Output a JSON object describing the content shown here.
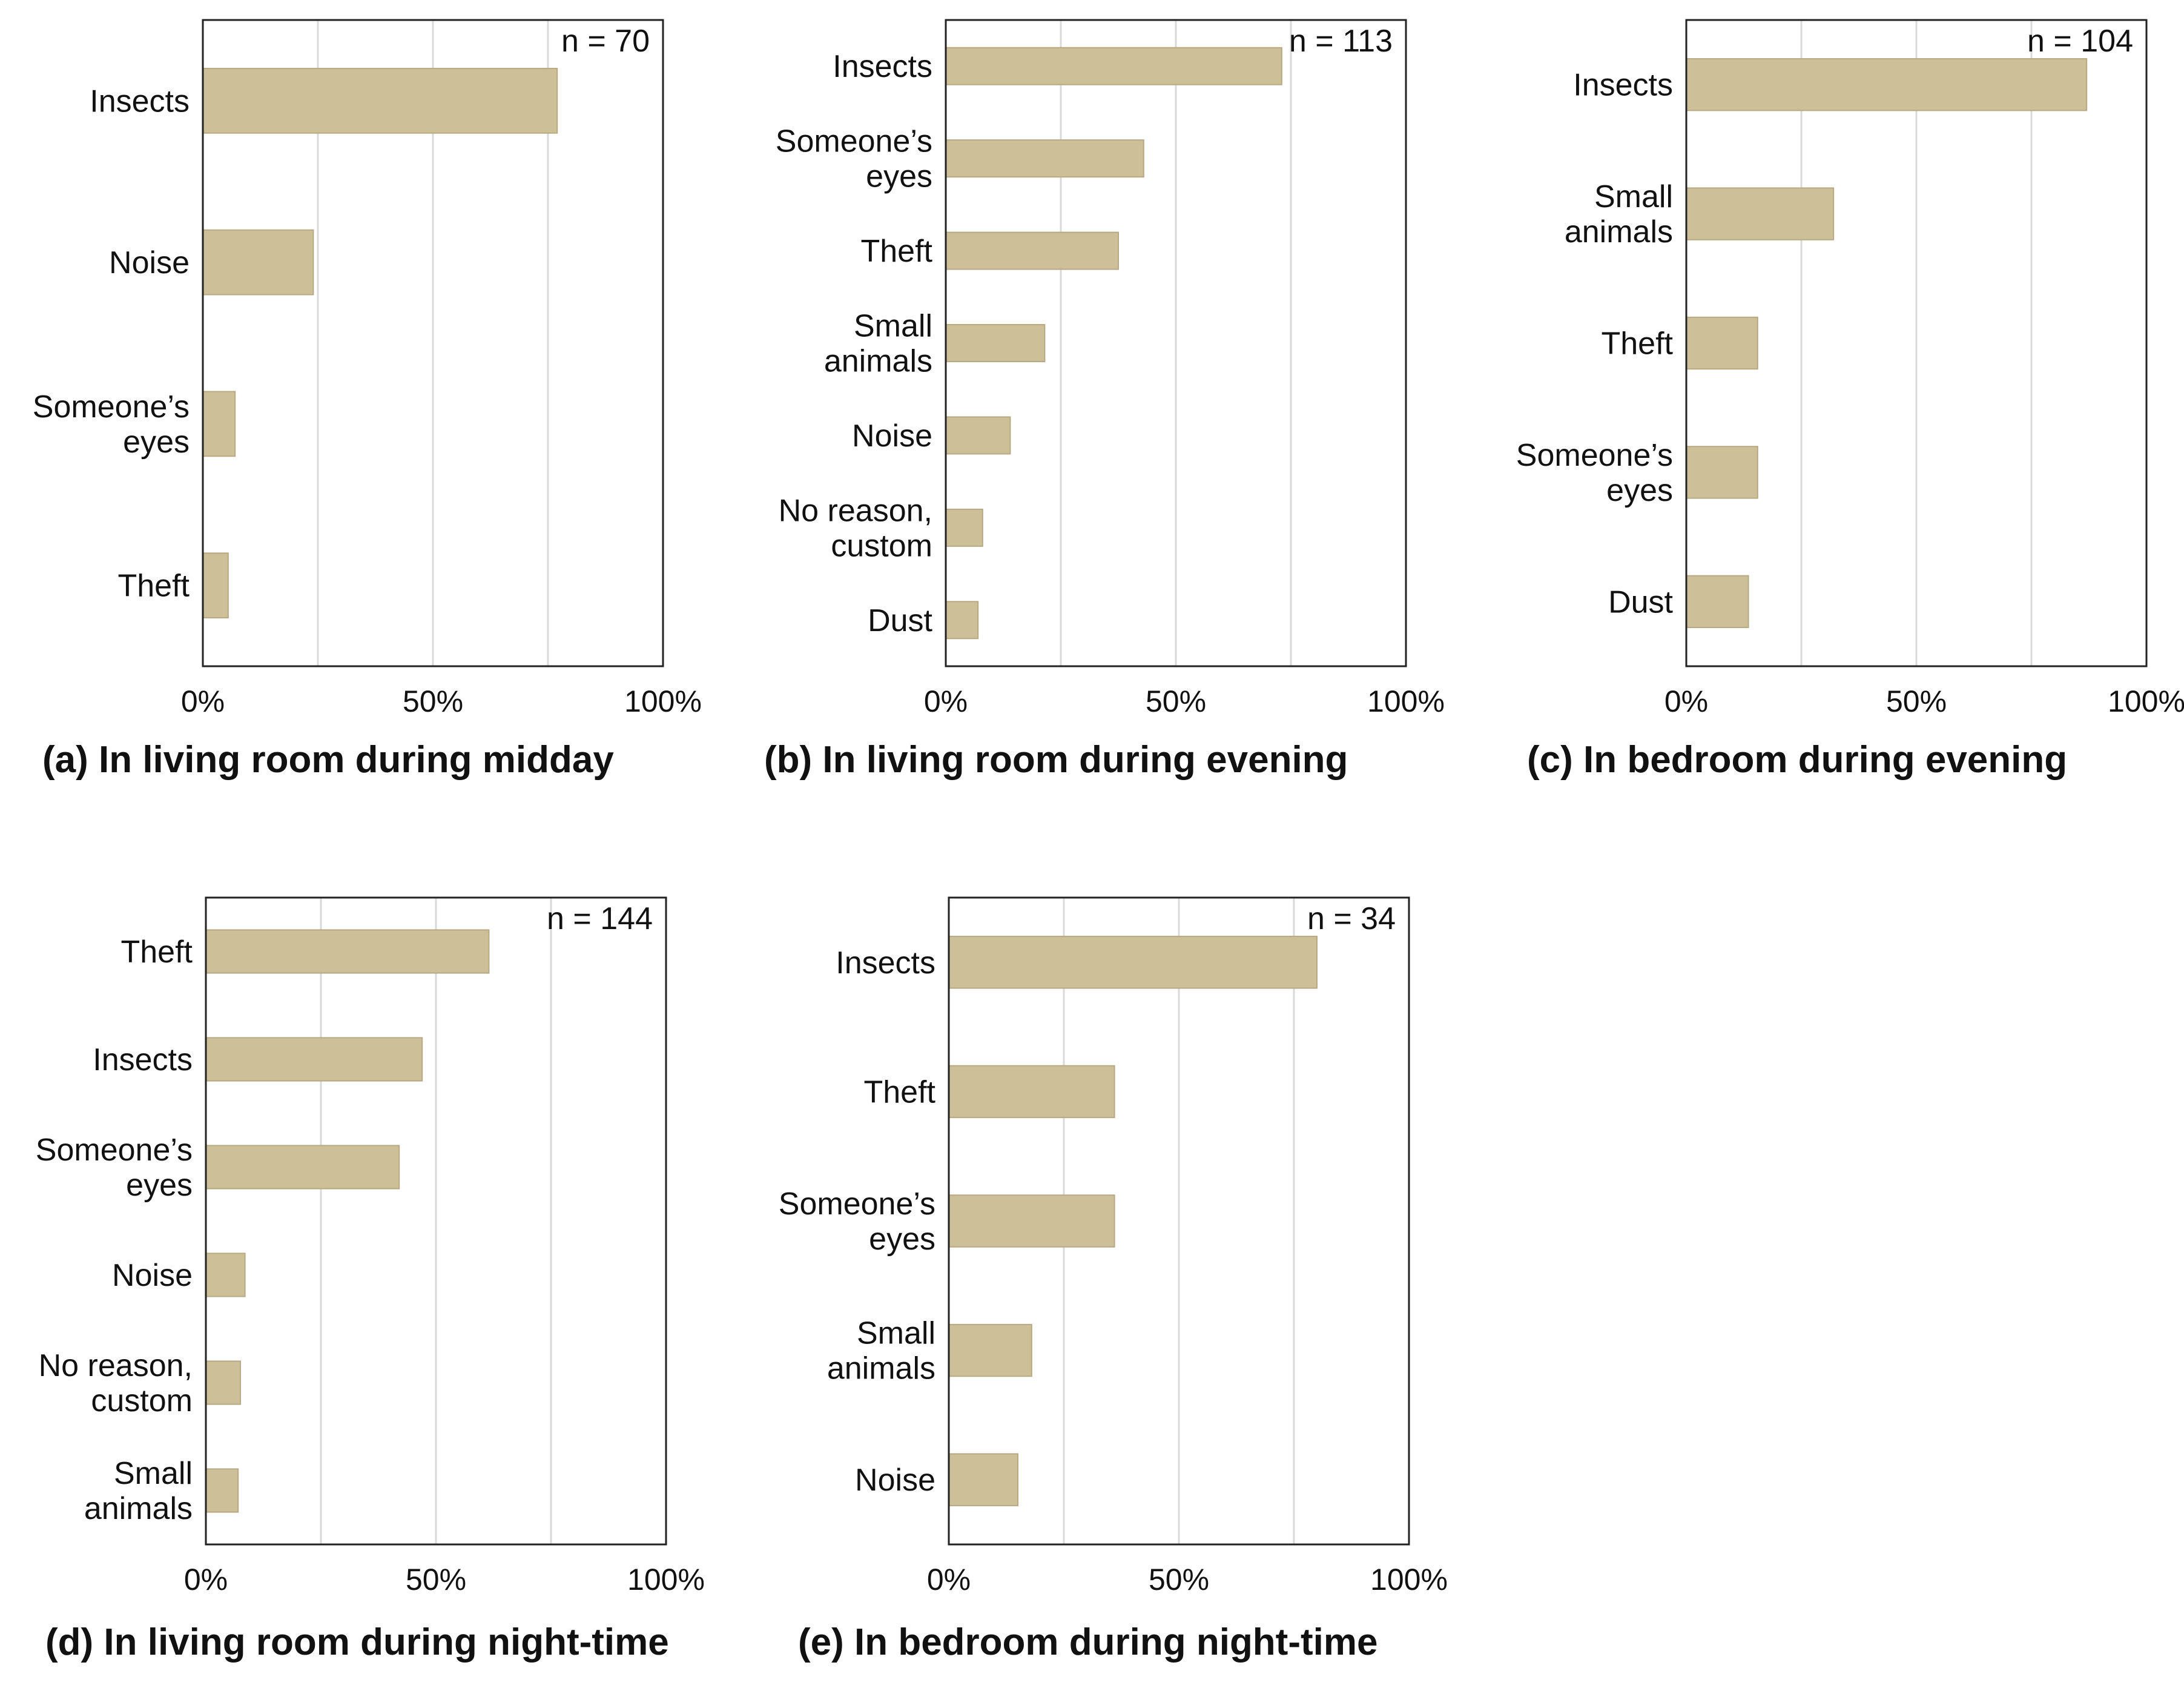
{
  "colors": {
    "bar": "#cdbf97",
    "bar_edge": "#b8a983",
    "grid": "#d9d9d9",
    "frame": "#222222"
  },
  "chart_data": [
    {
      "type": "bar",
      "orientation": "horizontal",
      "title": "(a)  In living room during midday",
      "n_label": "n = 70",
      "categories": [
        [
          "Insects"
        ],
        [
          "Noise"
        ],
        [
          "Someone’s",
          "eyes"
        ],
        [
          "Theft"
        ]
      ],
      "values": [
        77,
        24,
        7,
        5.5
      ],
      "xlim": [
        0,
        100
      ],
      "xticks": [
        "0%",
        "50%",
        "100%"
      ],
      "grid": true
    },
    {
      "type": "bar",
      "orientation": "horizontal",
      "title": "(b) In living room during evening",
      "n_label": "n = 113",
      "categories": [
        [
          "Insects"
        ],
        [
          "Someone’s",
          "eyes"
        ],
        [
          "Theft"
        ],
        [
          "Small",
          "animals"
        ],
        [
          "Noise"
        ],
        [
          "No reason,",
          "custom"
        ],
        [
          "Dust"
        ]
      ],
      "values": [
        73,
        43,
        37.5,
        21.5,
        14,
        8,
        7
      ],
      "xlim": [
        0,
        100
      ],
      "xticks": [
        "0%",
        "50%",
        "100%"
      ],
      "grid": true
    },
    {
      "type": "bar",
      "orientation": "horizontal",
      "title": "(c) In bedroom during evening",
      "n_label": "n = 104",
      "categories": [
        [
          "Insects"
        ],
        [
          "Small",
          "animals"
        ],
        [
          "Theft"
        ],
        [
          "Someone’s",
          "eyes"
        ],
        [
          "Dust"
        ]
      ],
      "values": [
        87,
        32,
        15.5,
        15.5,
        13.5
      ],
      "xlim": [
        0,
        100
      ],
      "xticks": [
        "0%",
        "50%",
        "100%"
      ],
      "grid": true
    },
    {
      "type": "bar",
      "orientation": "horizontal",
      "title": "(d) In living room during night-time",
      "n_label": "n = 144",
      "categories": [
        [
          "Theft"
        ],
        [
          "Insects"
        ],
        [
          "Someone’s",
          "eyes"
        ],
        [
          "Noise"
        ],
        [
          "No reason,",
          "custom"
        ],
        [
          "Small",
          "animals"
        ]
      ],
      "values": [
        61.5,
        47,
        42,
        8.5,
        7.5,
        7
      ],
      "xlim": [
        0,
        100
      ],
      "xticks": [
        "0%",
        "50%",
        "100%"
      ],
      "grid": true
    },
    {
      "type": "bar",
      "orientation": "horizontal",
      "title": "(e) In bedroom during night-time",
      "n_label": "n = 34",
      "categories": [
        [
          "Insects"
        ],
        [
          "Theft"
        ],
        [
          "Someone’s",
          "eyes"
        ],
        [
          "Small",
          "animals"
        ],
        [
          "Noise"
        ]
      ],
      "values": [
        80,
        36,
        36,
        18,
        15
      ],
      "xlim": [
        0,
        100
      ],
      "xticks": [
        "0%",
        "50%",
        "100%"
      ],
      "grid": true
    }
  ]
}
